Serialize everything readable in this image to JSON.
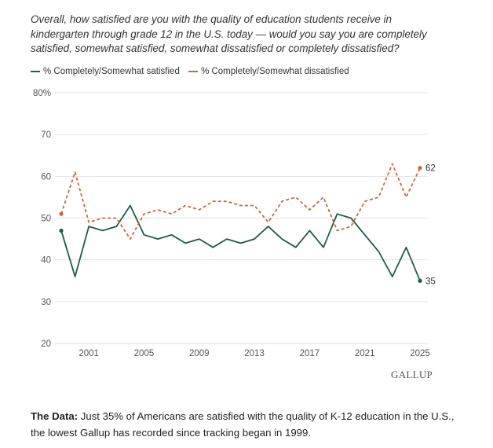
{
  "question": "Overall, how satisfied are you with the quality of education students receive in kindergarten through grade 12 in the U.S. today — would you say you are completely satisfied, somewhat satisfied, somewhat dissatisfied or completely dissatisfied?",
  "brand": "GALLUP",
  "caption": {
    "label": "The Data:",
    "text": " Just 35% of Americans are satisfied with the quality of K-12 education in the U.S., the lowest Gallup has recorded since tracking began in 1999."
  },
  "colors": {
    "satisfied": "#1f5a4a",
    "dissatisfied": "#c8683e",
    "grid": "#e2e2e2",
    "axis_text": "#555555"
  },
  "chart_data": {
    "type": "line",
    "title": "",
    "xlabel": "",
    "ylabel": "",
    "ylim": [
      20,
      80
    ],
    "xlim": [
      1999,
      2025
    ],
    "y_ticks": [
      20,
      30,
      40,
      50,
      60,
      70,
      80
    ],
    "y_tick_labels": [
      "20",
      "30",
      "40",
      "50",
      "60",
      "70",
      "80%"
    ],
    "x_ticks": [
      2001,
      2005,
      2009,
      2013,
      2017,
      2021,
      2025
    ],
    "x_tick_labels": [
      "2001",
      "2005",
      "2009",
      "2013",
      "2017",
      "2021",
      "2025"
    ],
    "grid": true,
    "legend_position": "top-left",
    "x": [
      1999,
      2000,
      2001,
      2002,
      2003,
      2004,
      2005,
      2006,
      2007,
      2008,
      2009,
      2010,
      2011,
      2012,
      2013,
      2014,
      2015,
      2016,
      2017,
      2018,
      2019,
      2020,
      2021,
      2022,
      2023,
      2024,
      2025
    ],
    "series": [
      {
        "name": "% Completely/Somewhat satisfied",
        "style": "solid",
        "color": "#1f5a4a",
        "values": [
          47,
          36,
          48,
          47,
          48,
          53,
          46,
          45,
          46,
          44,
          45,
          43,
          45,
          44,
          45,
          48,
          45,
          43,
          47,
          43,
          51,
          50,
          46,
          42,
          36,
          43,
          35
        ],
        "end_label": "35"
      },
      {
        "name": "% Completely/Somewhat dissatisfied",
        "style": "dashed",
        "color": "#c8683e",
        "values": [
          51,
          61,
          49,
          50,
          50,
          45,
          51,
          52,
          51,
          53,
          52,
          54,
          54,
          53,
          53,
          49,
          54,
          55,
          52,
          55,
          47,
          48,
          54,
          55,
          63,
          55,
          62
        ],
        "end_label": "62"
      }
    ]
  }
}
